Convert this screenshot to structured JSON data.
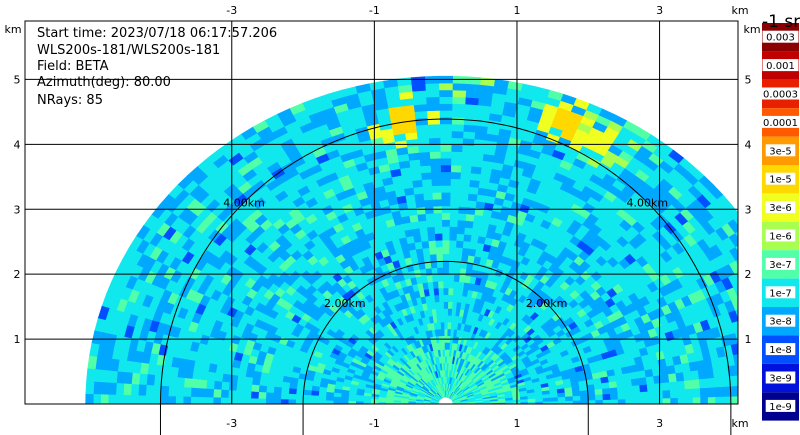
{
  "chart_data": {
    "type": "heatmap",
    "subtype": "radar-sector-scan",
    "info": {
      "start_time": "Start time: 2023/07/18 06:17:57.206",
      "instrument": "WLS200s-181/WLS200s-181",
      "field": "Field: BETA",
      "azimuth": "Azimuth(deg): 80.00",
      "nrays": "NRays: 85"
    },
    "x_unit": "km",
    "y_unit": "km",
    "x_ticks": [
      -3,
      -1,
      1,
      3
    ],
    "y_ticks": [
      1,
      2,
      3,
      4,
      5
    ],
    "xlim": [
      -5.9,
      4.1
    ],
    "ylim": [
      0,
      5.9
    ],
    "max_range_km": 5.05,
    "range_rings": [
      {
        "radius_km": 2,
        "label": "2.00km"
      },
      {
        "radius_km": 4,
        "label": "4.00km"
      }
    ],
    "grid": true,
    "colorbar": {
      "title": "-1 sr",
      "labels": [
        "0.003",
        "0.001",
        "0.0003",
        "0.0001",
        "3e-5",
        "1e-5",
        "3e-6",
        "1e-6",
        "3e-7",
        "1e-7",
        "3e-8",
        "1e-8",
        "3e-9",
        "1e-9"
      ],
      "colors": [
        "#8b0000",
        "#c00000",
        "#e82000",
        "#ff5a00",
        "#ff9a00",
        "#ffd800",
        "#f0ff20",
        "#a8ff50",
        "#50ffa8",
        "#10e8ee",
        "#00a8ff",
        "#0050ff",
        "#0010dd",
        "#000090"
      ]
    },
    "dominant_level": "1e-7",
    "hotspots": [
      {
        "x_km": 0.3,
        "y_km": 5.2,
        "level": "3e-6"
      },
      {
        "x_km": 2.2,
        "y_km": 4.05,
        "level": "3e-6"
      },
      {
        "x_km": 1.7,
        "y_km": 4.35,
        "level": "1e-5"
      },
      {
        "x_km": -0.6,
        "y_km": 4.35,
        "level": "1e-5"
      }
    ]
  }
}
